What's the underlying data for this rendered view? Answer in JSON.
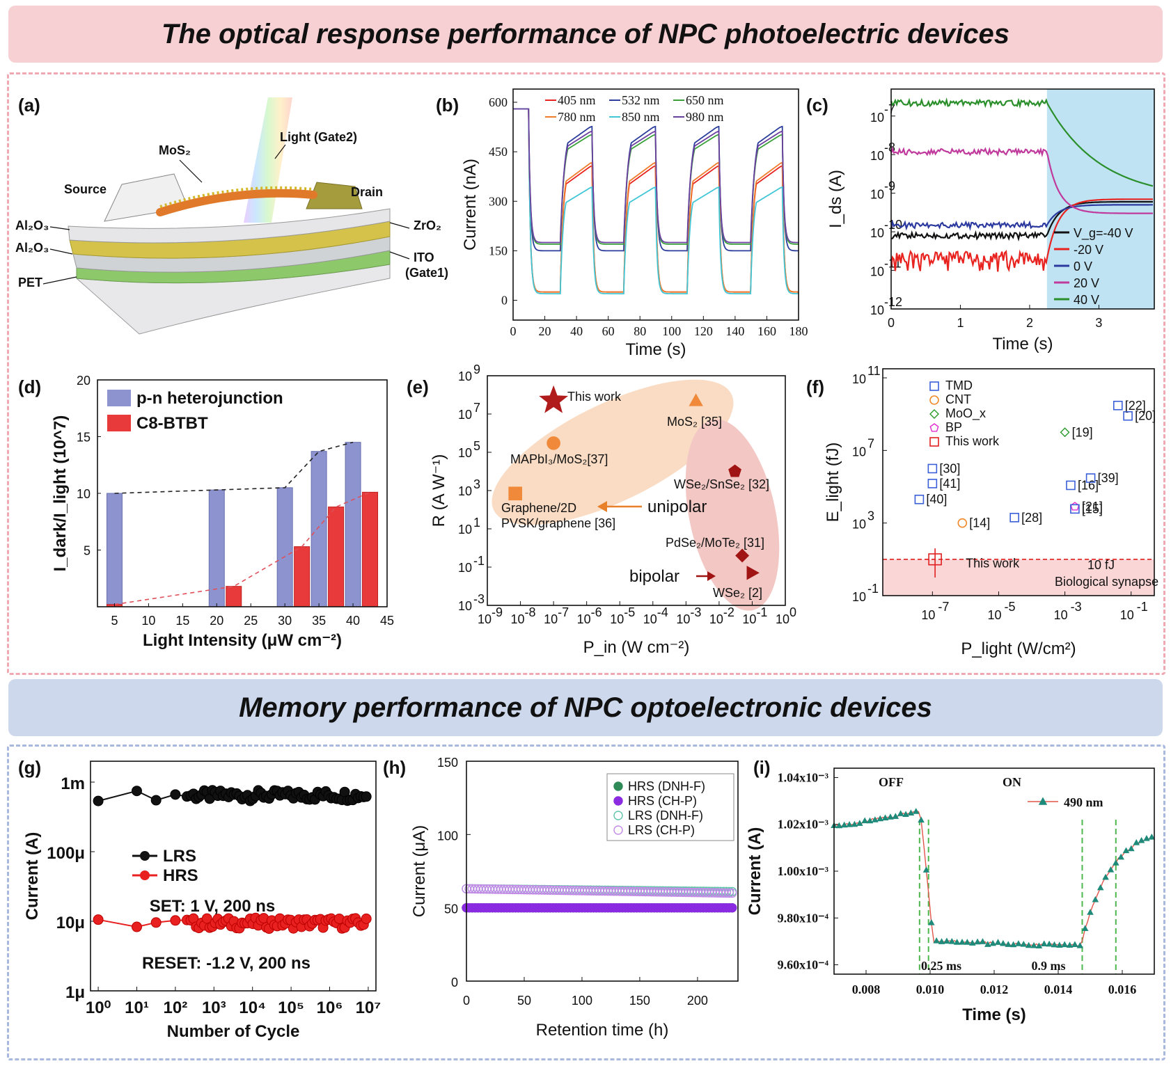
{
  "banners": {
    "top": "The optical response performance of NPC photoelectric devices",
    "bottom": "Memory performance of NPC optoelectronic devices"
  },
  "panel_labels": [
    "(a)",
    "(b)",
    "(c)",
    "(d)",
    "(e)",
    "(f)",
    "(g)",
    "(h)",
    "(i)"
  ],
  "panel_a": {
    "labels": [
      "Light (Gate2)",
      "MoS₂",
      "Source",
      "Drain",
      "Al₂O₃",
      "ZrO₂",
      "Al₂O₃",
      "ITO",
      "(Gate1)",
      "PET"
    ],
    "colors": {
      "gold": "#d4c24a",
      "green": "#8dc86a",
      "grey": "#cfd3d6",
      "mos2": "#e07a2a"
    }
  },
  "chart_data": [
    {
      "id": "b",
      "type": "line",
      "xlabel": "Time (s)",
      "ylabel": "Current (nA)",
      "xlim": [
        0,
        180
      ],
      "ylim": [
        -60,
        640
      ],
      "xticks": [
        0,
        20,
        40,
        60,
        80,
        100,
        120,
        140,
        160,
        180
      ],
      "yticks": [
        0,
        150,
        300,
        450,
        600
      ],
      "legend_position": "top-left",
      "period_on": [
        [
          10,
          30
        ],
        [
          50,
          70
        ],
        [
          90,
          110
        ],
        [
          130,
          150
        ],
        [
          170,
          180
        ]
      ],
      "series": [
        {
          "name": "405 nm",
          "color": "#e8231f",
          "on_peak": 410,
          "off_level": 25
        },
        {
          "name": "532 nm",
          "color": "#2c3e9c",
          "on_peak": 530,
          "off_level": 150
        },
        {
          "name": "650 nm",
          "color": "#3aa03a",
          "on_peak": 505,
          "off_level": 170
        },
        {
          "name": "780 nm",
          "color": "#f07b2a",
          "on_peak": 420,
          "off_level": 25
        },
        {
          "name": "850 nm",
          "color": "#40c6d6",
          "on_peak": 345,
          "off_level": 20
        },
        {
          "name": "980 nm",
          "color": "#6a3fa0",
          "on_peak": 515,
          "off_level": 175
        }
      ]
    },
    {
      "id": "c",
      "type": "line",
      "xlabel": "Time (s)",
      "ylabel": "I_ds (A)",
      "xlim": [
        0,
        3.8
      ],
      "ylim_log": [
        1e-12,
        5e-07
      ],
      "log_y": true,
      "xticks": [
        0,
        1,
        2,
        3
      ],
      "yticks": [
        "10^-12",
        "10^-11",
        "10^-10",
        "10^-9",
        "10^-8",
        "10^-7"
      ],
      "shaded_from": 2.25,
      "legend_position": "bottom-right",
      "series": [
        {
          "name": "V_g=-40 V",
          "color": "#111111",
          "before": 8e-11,
          "after": 6e-10
        },
        {
          "name": "-20 V",
          "color": "#e8231f",
          "before": 2e-11,
          "after": 7e-10
        },
        {
          "name": "0 V",
          "color": "#2c3aa0",
          "before": 1.5e-10,
          "after": 5e-10
        },
        {
          "name": "20 V",
          "color": "#c0399c",
          "before": 1.2e-08,
          "after": 3e-10
        },
        {
          "name": "40 V",
          "color": "#2a8f2a",
          "before": 2.2e-07,
          "after": 7e-10
        }
      ]
    },
    {
      "id": "d",
      "type": "bar",
      "xlabel": "Light Intensity (μW cm⁻²)",
      "ylabel": "I_dark/I_light (10^7)",
      "xlim": [
        2.5,
        45
      ],
      "ylim": [
        0,
        20
      ],
      "xticks": [
        5,
        10,
        15,
        20,
        25,
        30,
        35,
        40,
        45
      ],
      "yticks": [
        5,
        10,
        15,
        20
      ],
      "series": [
        {
          "name": "p-n heterojunction",
          "color": "#8c93cf",
          "x": [
            5,
            20,
            30,
            35,
            40
          ],
          "values": [
            10,
            10.3,
            10.5,
            13.7,
            14.5
          ]
        },
        {
          "name": "C8-BTBT",
          "color": "#e83a3a",
          "x": [
            5,
            22.5,
            32.5,
            37.5,
            42.5
          ],
          "values": [
            0.2,
            1.8,
            5.3,
            8.8,
            10.1
          ]
        }
      ]
    },
    {
      "id": "e",
      "type": "scatter",
      "log_x": true,
      "log_y": true,
      "xlabel": "P_in (W cm⁻²)",
      "ylabel": "R (A W⁻¹)",
      "xlim_exp": [
        -9,
        0
      ],
      "ylim_exp": [
        -3,
        9
      ],
      "points": [
        {
          "label": "This work",
          "x": 1e-07,
          "y": 50000000.0,
          "marker": "star",
          "color": "#b01b1b"
        },
        {
          "label": "MoS₂ [35]",
          "x": 0.002,
          "y": 50000000.0,
          "marker": "triangle",
          "color": "#f08a3a"
        },
        {
          "label": "MAPbI₃/MoS₂[37]",
          "x": 1e-07,
          "y": 300000.0,
          "marker": "circle",
          "color": "#f08a3a"
        },
        {
          "label": "Graphene/2D PVSK/graphene [36]",
          "x": 7e-09,
          "y": 700.0,
          "marker": "square",
          "color": "#f08a3a"
        },
        {
          "label": "WSe₂/SnSe₂ [32]",
          "x": 0.03,
          "y": 10000.0,
          "marker": "pentagon",
          "color": "#a01414"
        },
        {
          "label": "PdSe₂/MoTe₂ [31]",
          "x": 0.05,
          "y": 0.4,
          "marker": "diamond",
          "color": "#a01414"
        },
        {
          "label": "WSe₂ [2]",
          "x": 0.1,
          "y": 0.05,
          "marker": "triangle-right",
          "color": "#a01414"
        }
      ],
      "annotations": [
        "unipolar",
        "bipolar"
      ]
    },
    {
      "id": "f",
      "type": "scatter",
      "log_x": true,
      "log_y": true,
      "xlabel": "P_light (W/cm²)",
      "ylabel": "E_light (fJ)",
      "xlim_exp": [
        -8.5,
        -0.3
      ],
      "ylim_exp": [
        -1,
        11.5
      ],
      "legend": [
        {
          "name": "TMD",
          "color": "#3a5fd9",
          "marker": "square"
        },
        {
          "name": "CNT",
          "color": "#f08a2a",
          "marker": "circle"
        },
        {
          "name": "MoO_x",
          "color": "#2a9a2a",
          "marker": "diamond"
        },
        {
          "name": "BP",
          "color": "#e02ad0",
          "marker": "pentagon"
        },
        {
          "name": "This work",
          "color": "#e02020",
          "marker": "box"
        }
      ],
      "points": [
        {
          "ref": "[22]",
          "x": 0.04,
          "y": 3000000000.0,
          "group": "TMD"
        },
        {
          "ref": "[20]",
          "x": 0.08,
          "y": 800000000.0,
          "group": "TMD"
        },
        {
          "ref": "[19]",
          "x": 0.001,
          "y": 100000000.0,
          "group": "MoO_x"
        },
        {
          "ref": "[30]",
          "x": 1e-07,
          "y": 1000000.0,
          "group": "TMD"
        },
        {
          "ref": "[41]",
          "x": 1e-07,
          "y": 150000.0,
          "group": "TMD"
        },
        {
          "ref": "[40]",
          "x": 4e-08,
          "y": 20000.0,
          "group": "TMD"
        },
        {
          "ref": "[16]",
          "x": 0.0015,
          "y": 120000.0,
          "group": "TMD"
        },
        {
          "ref": "[39]",
          "x": 0.006,
          "y": 300000.0,
          "group": "TMD"
        },
        {
          "ref": "[21]",
          "x": 0.002,
          "y": 8000.0,
          "group": "BP"
        },
        {
          "ref": "[15]",
          "x": 0.002,
          "y": 6000.0,
          "group": "TMD"
        },
        {
          "ref": "[14]",
          "x": 8e-07,
          "y": 1000.0,
          "group": "CNT"
        },
        {
          "ref": "[28]",
          "x": 3e-05,
          "y": 2000.0,
          "group": "TMD"
        }
      ],
      "this_work_label": "This work",
      "threshold": {
        "value": 10,
        "label_a": "10 fJ",
        "label_b": "Biological synapse"
      }
    },
    {
      "id": "g",
      "type": "scatter",
      "log_x": true,
      "log_y": true,
      "xlabel": "Number of Cycle",
      "ylabel": "Current (A)",
      "xticks": [
        "10⁰",
        "10¹",
        "10²",
        "10³",
        "10⁴",
        "10⁵",
        "10⁶",
        "10⁷"
      ],
      "yticks": [
        "1μ",
        "10μ",
        "100μ",
        "1m"
      ],
      "series": [
        {
          "name": "LRS",
          "color": "#111111",
          "level": 0.00065
        },
        {
          "name": "HRS",
          "color": "#e82020",
          "level": 9.5e-06
        }
      ],
      "notes": [
        "SET: 1 V, 200 ns",
        "RESET: -1.2 V, 200 ns"
      ]
    },
    {
      "id": "h",
      "type": "scatter",
      "xlabel": "Retention time (h)",
      "ylabel": "Current (μA)",
      "xlim": [
        0,
        235
      ],
      "ylim": [
        0,
        150
      ],
      "xticks": [
        0,
        50,
        100,
        150,
        200
      ],
      "yticks": [
        0,
        50,
        100,
        150
      ],
      "legend_position": "top-right",
      "series": [
        {
          "name": "HRS (DNH-F)",
          "color": "#2e8b57",
          "filled": true,
          "level": 50
        },
        {
          "name": "HRS (CH-P)",
          "color": "#8a2be2",
          "filled": true,
          "level": 50
        },
        {
          "name": "LRS (DNH-F)",
          "color": "#5fc4a8",
          "filled": false,
          "start": 63,
          "end": 61
        },
        {
          "name": "LRS (CH-P)",
          "color": "#c48ae8",
          "filled": false,
          "start": 63,
          "end": 60
        }
      ]
    },
    {
      "id": "i",
      "type": "line",
      "xlabel": "Time (s)",
      "ylabel": "Current (A)",
      "xlim": [
        0.007,
        0.017
      ],
      "ylim": [
        0.000956,
        0.001044
      ],
      "xticks": [
        "0.008",
        "0.010",
        "0.012",
        "0.014",
        "0.016"
      ],
      "yticks": [
        "9.60x10⁻⁴",
        "9.80x10⁻⁴",
        "1.00x10⁻³",
        "1.02x10⁻³",
        "1.04x10⁻³"
      ],
      "series": [
        {
          "name": "490 nm",
          "color": "#1f8a7a"
        }
      ],
      "annotations": [
        "OFF",
        "ON",
        "0.25 ms",
        "0.9 ms"
      ]
    }
  ]
}
